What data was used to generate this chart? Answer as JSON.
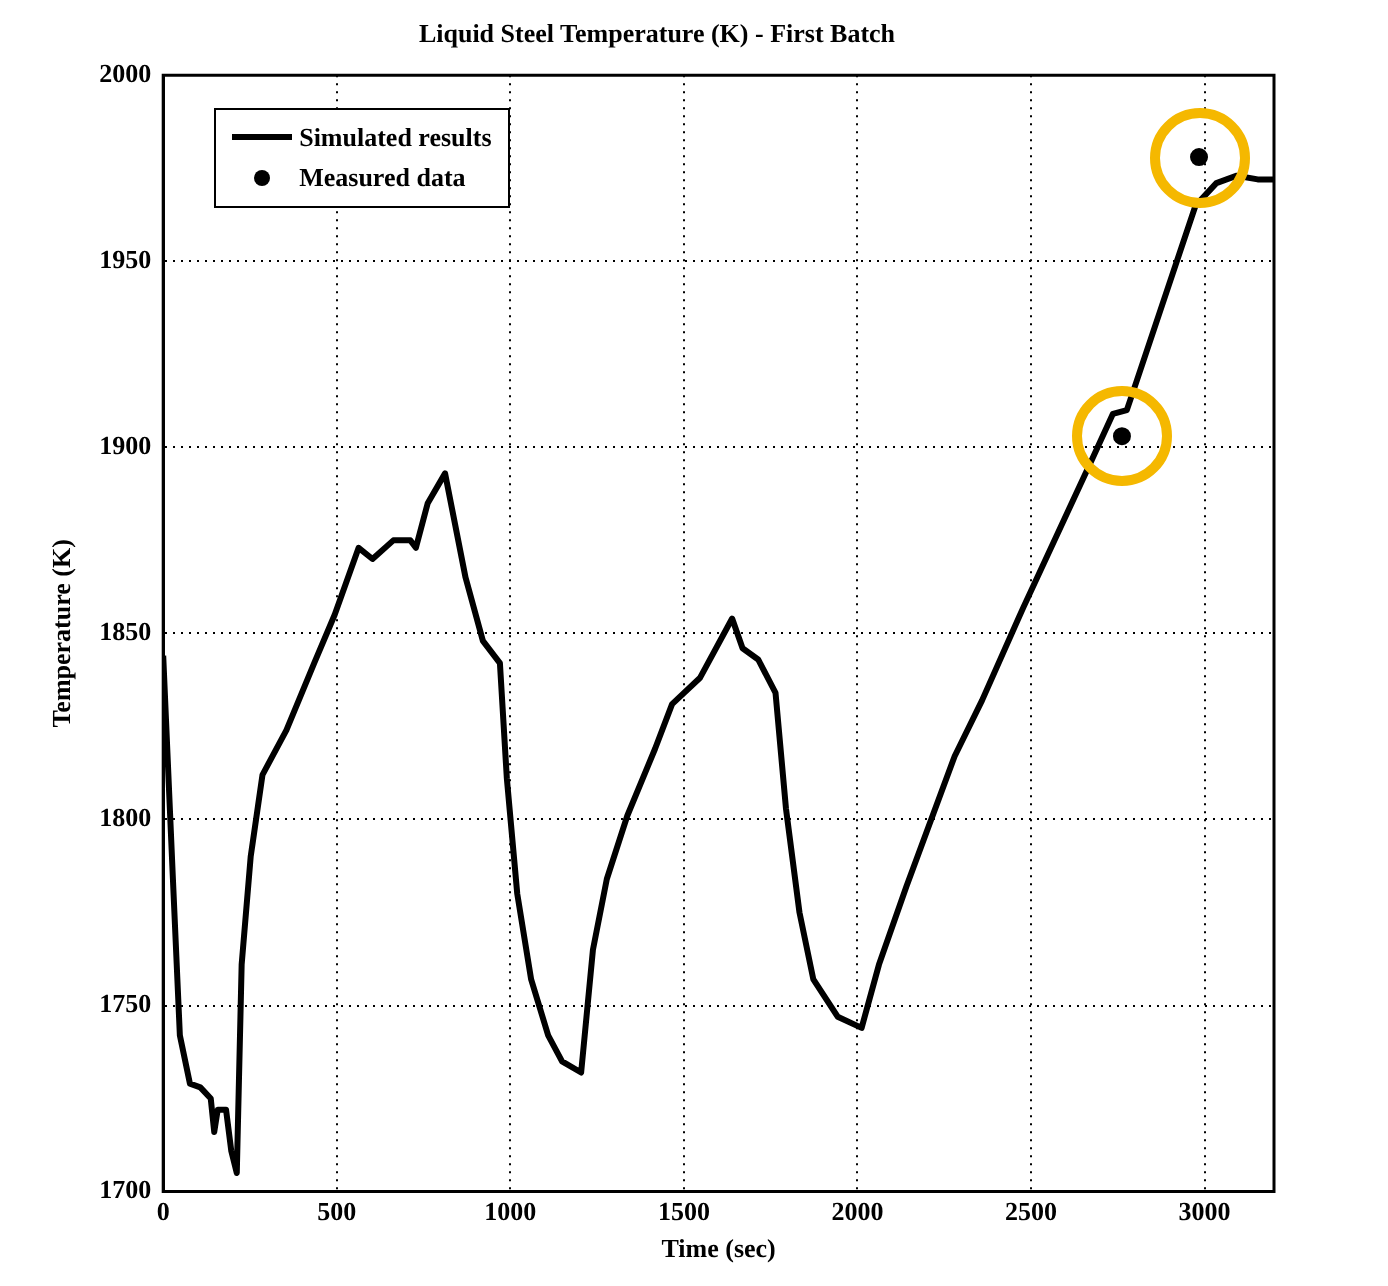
{
  "chart_data": {
    "type": "line",
    "title": "Liquid Steel Temperature (K) - First Batch",
    "xlabel": "Time (sec)",
    "ylabel": "Temperature (K)",
    "xlim": [
      0,
      3200
    ],
    "xticks": [
      0,
      500,
      1000,
      1500,
      2000,
      2500,
      3000
    ],
    "ylim": [
      1700,
      2000
    ],
    "yticks": [
      1700,
      1750,
      1800,
      1850,
      1900,
      1950,
      2000
    ],
    "grid": true,
    "legend": "top left",
    "line_style": "solid",
    "series": [
      {
        "name": "Simulated results",
        "color": "#000000",
        "marker": "none",
        "x": [
          0,
          28,
          48,
          77,
          107,
          137,
          147,
          157,
          181,
          196,
          212,
          226,
          252,
          286,
          355,
          435,
          494,
          563,
          603,
          663,
          712,
          728,
          762,
          812,
          871,
          921,
          970,
          990,
          1020,
          1060,
          1109,
          1149,
          1204,
          1238,
          1278,
          1337,
          1417,
          1466,
          1546,
          1639,
          1669,
          1714,
          1764,
          1794,
          1833,
          1873,
          1943,
          2012,
          2062,
          2141,
          2280,
          2359,
          2478,
          2677,
          2736,
          2776,
          2805,
          2974,
          3034,
          3093,
          3153,
          3200
        ],
        "values": [
          1844,
          1784,
          1742,
          1729,
          1728,
          1725,
          1716,
          1722,
          1722,
          1711,
          1705,
          1761,
          1790,
          1812,
          1824,
          1842,
          1855,
          1873,
          1870,
          1875,
          1875,
          1873,
          1885,
          1893,
          1865,
          1848,
          1842,
          1811,
          1780,
          1757,
          1742,
          1735,
          1732,
          1765,
          1784,
          1801,
          1819,
          1831,
          1838,
          1854,
          1846,
          1843,
          1834,
          1803,
          1775,
          1757,
          1747,
          1744,
          1761,
          1782,
          1817,
          1832,
          1857,
          1897,
          1909,
          1910,
          1918,
          1965,
          1971,
          1973,
          1972,
          1972
        ]
      },
      {
        "name": "Measured data",
        "type": "scatter",
        "color": "#000000",
        "marker": "circle",
        "x": [
          2762,
          2984
        ],
        "values": [
          1903,
          1978
        ]
      }
    ]
  }
}
